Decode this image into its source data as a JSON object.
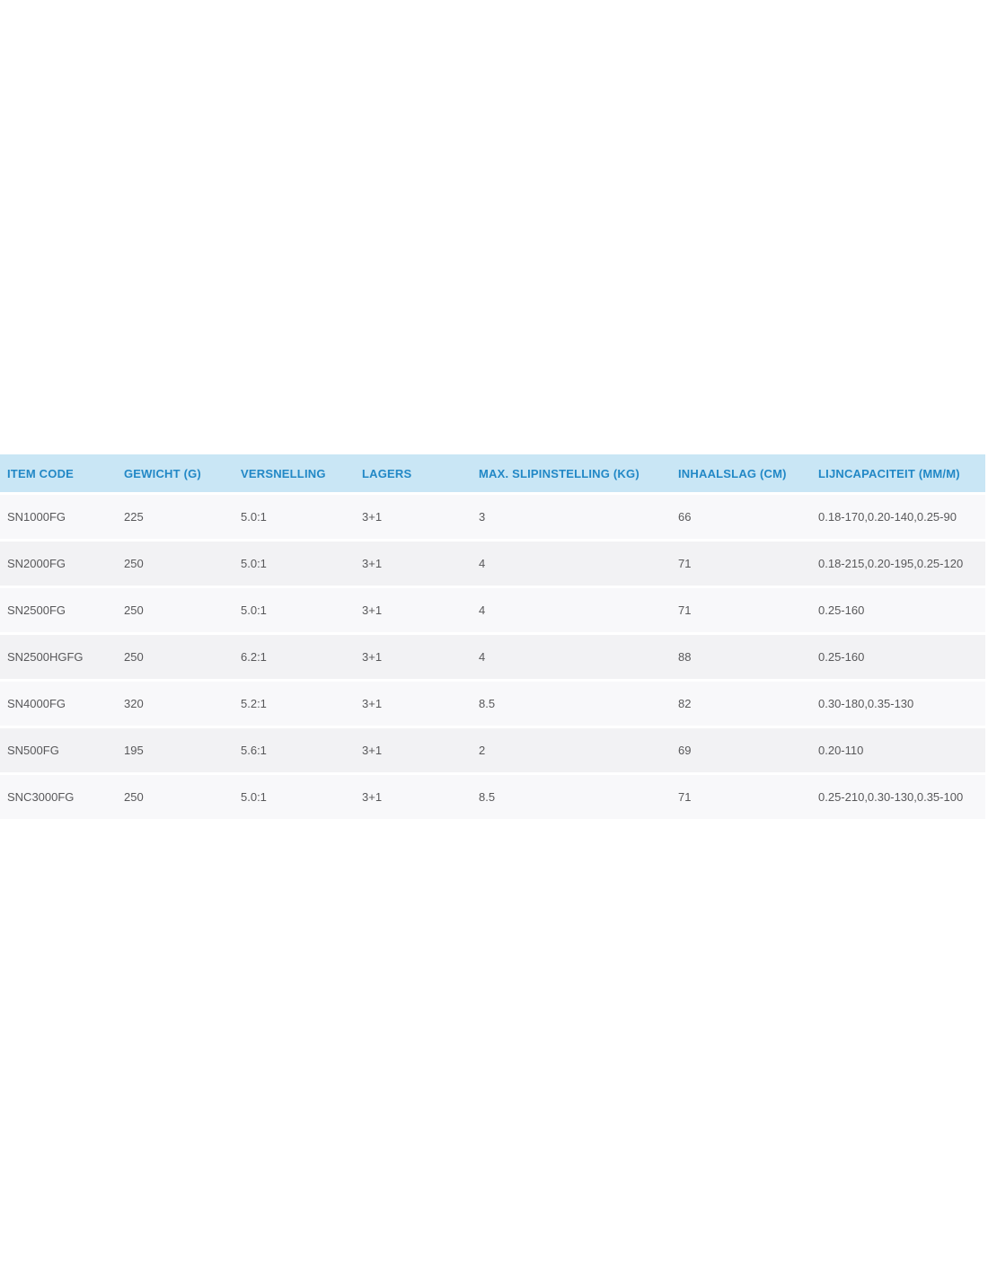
{
  "page": {
    "background_color": "#ffffff"
  },
  "table": {
    "colors": {
      "header_bg": "#c9e6f5",
      "header_text": "#2288c6",
      "row_odd_bg": "#f8f8fa",
      "row_even_bg": "#f2f2f4",
      "body_text": "#58585a"
    },
    "columns": [
      "ITEM CODE",
      "GEWICHT (G)",
      "VERSNELLING",
      "LAGERS",
      "MAX. SLIPINSTELLING (KG)",
      "INHAALSLAG (CM)",
      "LIJNCAPACITEIT (MM/M)"
    ],
    "rows": [
      [
        "SN1000FG",
        "225",
        "5.0:1",
        "3+1",
        "3",
        "66",
        "0.18-170,0.20-140,0.25-90"
      ],
      [
        "SN2000FG",
        "250",
        "5.0:1",
        "3+1",
        "4",
        "71",
        "0.18-215,0.20-195,0.25-120"
      ],
      [
        "SN2500FG",
        "250",
        "5.0:1",
        "3+1",
        "4",
        "71",
        "0.25-160"
      ],
      [
        "SN2500HGFG",
        "250",
        "6.2:1",
        "3+1",
        "4",
        "88",
        "0.25-160"
      ],
      [
        "SN4000FG",
        "320",
        "5.2:1",
        "3+1",
        "8.5",
        "82",
        "0.30-180,0.35-130"
      ],
      [
        "SN500FG",
        "195",
        "5.6:1",
        "3+1",
        "2",
        "69",
        "0.20-110"
      ],
      [
        "SNC3000FG",
        "250",
        "5.0:1",
        "3+1",
        "8.5",
        "71",
        "0.25-210,0.30-130,0.35-100"
      ]
    ]
  }
}
